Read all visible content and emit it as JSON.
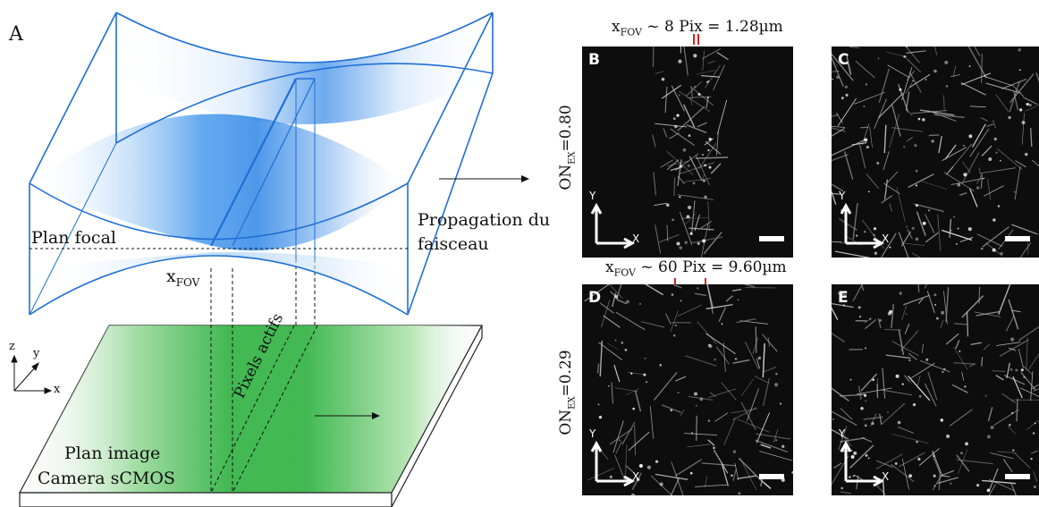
{
  "figure": {
    "panel_letter_a": "A",
    "labels": {
      "focal_plane": "Plan focal",
      "propagation_line1": "Propagation du",
      "propagation_line2": "faisceau",
      "x_fov_base": "x",
      "x_fov_sub": "FOV",
      "image_plane_line1": "Plan image",
      "image_plane_line2": "Camera sCMOS",
      "active_pixels": "Pixels actifs",
      "axis_z": "z",
      "axis_y": "y",
      "axis_x": "x"
    },
    "colors": {
      "beam_blue": "#1f6fd6",
      "beam_fill": "#2f86e6",
      "sensor_green": "#39b54a",
      "marker_red": "#d9231f"
    }
  },
  "micrographs": {
    "top_annotation": {
      "base": "x",
      "sub": "FOV",
      "text": " ~ 8 Pix = 1.28µm"
    },
    "mid_annotation": {
      "base": "x",
      "sub": "FOV",
      "text": " ~ 60 Pix = 9.60µm"
    },
    "row_labels": [
      {
        "prefix": "ON",
        "sub": "EX",
        "value": "=0.80"
      },
      {
        "prefix": "ON",
        "sub": "EX",
        "value": "=0.29"
      }
    ],
    "panels": [
      {
        "letter": "B",
        "axis_y": "Y",
        "axis_x": "X"
      },
      {
        "letter": "C",
        "axis_y": "Y",
        "axis_x": "X"
      },
      {
        "letter": "D",
        "axis_y": "Y",
        "axis_x": "X"
      },
      {
        "letter": "E",
        "axis_y": "Y",
        "axis_x": "X"
      }
    ]
  }
}
